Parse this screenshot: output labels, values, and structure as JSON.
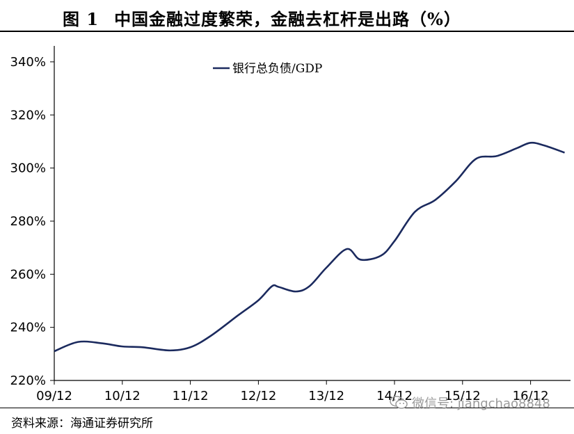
{
  "title": {
    "number": "图 1",
    "text": "中国金融过度繁荣，金融去杠杆是出路（%）"
  },
  "source": "资料来源：海通证券研究所",
  "watermark": {
    "icon": "wechat-icon",
    "text": "微信号: jiangchao8848"
  },
  "colors": {
    "line": "#1b2a5e",
    "axis": "#000000"
  },
  "chart_data": {
    "type": "line",
    "title": "中国金融过度繁荣，金融去杠杆是出路（%）",
    "xlabel": "",
    "ylabel": "",
    "categories": [
      "09/12",
      "10/12",
      "11/12",
      "12/12",
      "13/12",
      "14/12",
      "15/12",
      "16/12"
    ],
    "y_ticks": [
      220,
      240,
      260,
      280,
      300,
      320,
      340
    ],
    "y_tick_labels": [
      "220%",
      "240%",
      "260%",
      "280%",
      "300%",
      "320%",
      "340%"
    ],
    "ylim": [
      220,
      346
    ],
    "grid": false,
    "legend": "top-left",
    "series": [
      {
        "name": "银行总负债/GDP",
        "x": [
          0,
          0.35,
          0.7,
          1.0,
          1.3,
          1.7,
          2.0,
          2.3,
          2.7,
          3.0,
          3.2,
          3.3,
          3.55,
          3.75,
          4.0,
          4.3,
          4.5,
          4.8,
          5.0,
          5.3,
          5.6,
          5.9,
          6.2,
          6.5,
          6.8,
          7.0,
          7.2,
          7.5
        ],
        "values": [
          231,
          234.5,
          234,
          232.8,
          232.5,
          231.3,
          232.5,
          236.8,
          244.5,
          250.2,
          255.5,
          255.2,
          253.5,
          255.5,
          262.5,
          269.5,
          265.5,
          267.0,
          272.5,
          283.5,
          288.0,
          295.0,
          303.5,
          304.5,
          307.5,
          309.5,
          308.5,
          305.8
        ]
      }
    ]
  }
}
